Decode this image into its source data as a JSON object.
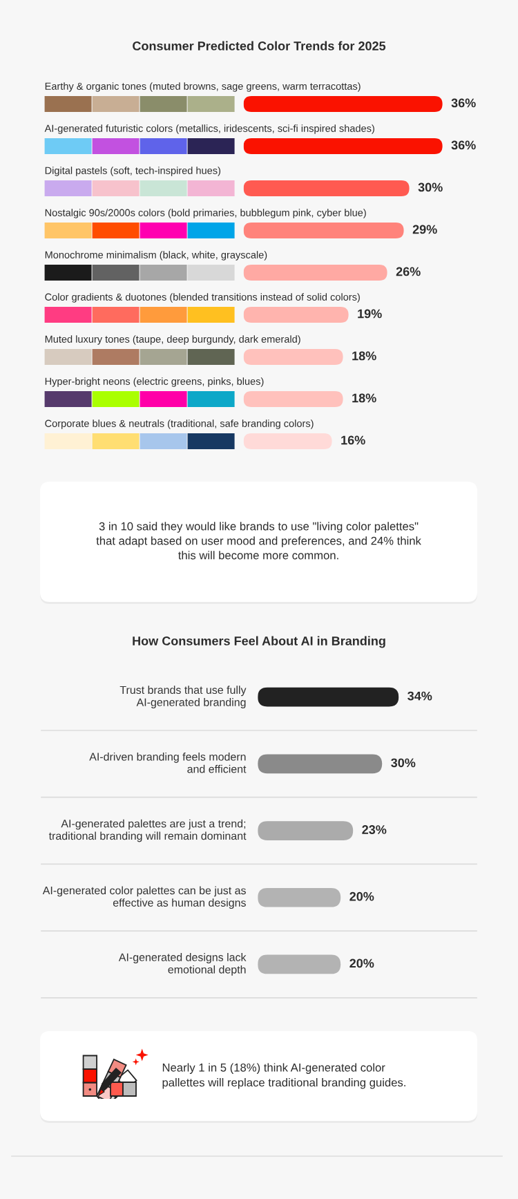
{
  "chart_data": [
    {
      "type": "bar",
      "orientation": "horizontal",
      "title": "Consumer Predicted Color Trends for 2025",
      "categories": [
        "Earthy & organic tones (muted browns, sage greens, warm terracottas)",
        "AI-generated futuristic colors (metallics, iridescents, sci-fi inspired shades)",
        "Digital pastels (soft, tech-inspired hues)",
        "Nostalgic 90s/2000s colors (bold primaries, bubblegum pink, cyber blue)",
        "Monochrome minimalism (black, white, grayscale)",
        "Color gradients & duotones (blended transitions instead of solid colors)",
        "Muted luxury tones (taupe, deep burgundy, dark emerald)",
        "Hyper-bright neons (electric greens, pinks, blues)",
        "Corporate blues & neutrals (traditional, safe branding colors)"
      ],
      "values": [
        36,
        36,
        30,
        29,
        26,
        19,
        18,
        18,
        16
      ],
      "colors": [
        "#fa1200",
        "#fa1200",
        "#ff5a51",
        "#ff837b",
        "#ffa9a3",
        "#ffb4ae",
        "#ffc1bc",
        "#ffc1bc",
        "#ffdad8"
      ],
      "value_labels": [
        "36%",
        "36%",
        "30%",
        "29%",
        "26%",
        "19%",
        "18%",
        "18%",
        "16%"
      ]
    },
    {
      "type": "other",
      "annotations": [
        "3 in 10 said they would like brands to use \"living color palettes\"\nthat adapt based on user mood and preferences, and 24% think\nthis will become more common."
      ]
    },
    {
      "type": "bar",
      "orientation": "horizontal",
      "title": "How Consumers Feel About AI in Branding",
      "categories": [
        "Trust brands that use fully\nAI-generated branding",
        "AI-driven branding feels modern\nand efficient",
        "AI-generated palettes are just a trend;\ntraditional branding will remain dominant",
        "AI-generated color palettes can be just as\neffective as human designs",
        "AI-generated designs lack\nemotional depth"
      ],
      "values": [
        34,
        30,
        23,
        20,
        20
      ],
      "colors": [
        "#222222",
        "#8a8a8a",
        "#ababab",
        "#b3b3b3",
        "#b3b3b3"
      ],
      "value_labels": [
        "34%",
        "30%",
        "23%",
        "20%",
        "20%"
      ]
    },
    {
      "type": "other",
      "annotations": [
        "Nearly 1 in 5 (18%) think AI-generated color\npallettes will replace traditional branding guides."
      ]
    }
  ]
}
